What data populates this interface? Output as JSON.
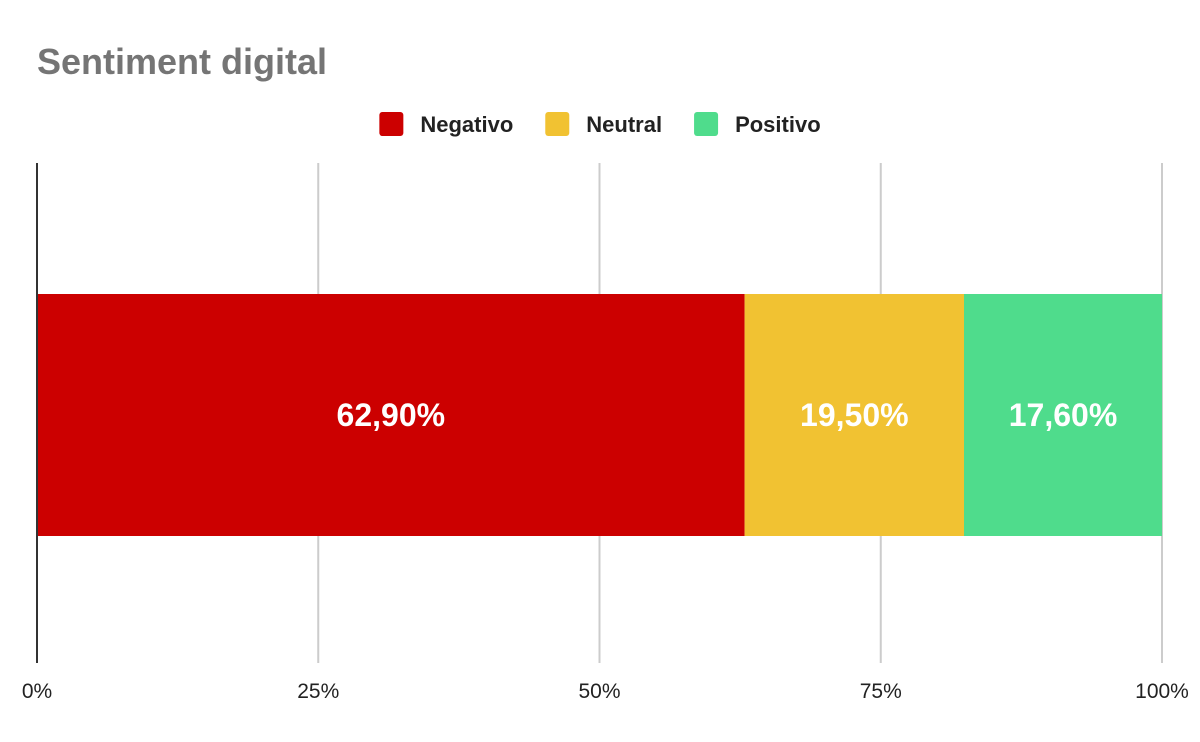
{
  "chart_data": {
    "type": "bar",
    "orientation": "horizontal",
    "stacked": true,
    "stacking": "percent",
    "title": "Sentiment digital",
    "xlabel": "",
    "ylabel": "",
    "categories": [
      ""
    ],
    "series": [
      {
        "name": "Negativo",
        "values": [
          62.9
        ],
        "color": "#cc0000",
        "label": "62,90%"
      },
      {
        "name": "Neutral",
        "values": [
          19.5
        ],
        "color": "#f1c232",
        "label": "19,50%"
      },
      {
        "name": "Positivo",
        "values": [
          17.6
        ],
        "color": "#4fdc8c",
        "label": "17,60%"
      }
    ],
    "xlim": [
      0,
      100
    ],
    "x_ticks": [
      {
        "value": 0,
        "label": "0%"
      },
      {
        "value": 25,
        "label": "25%"
      },
      {
        "value": 50,
        "label": "50%"
      },
      {
        "value": 75,
        "label": "75%"
      },
      {
        "value": 100,
        "label": "100%"
      }
    ],
    "grid": true,
    "legend_position": "top-center"
  }
}
